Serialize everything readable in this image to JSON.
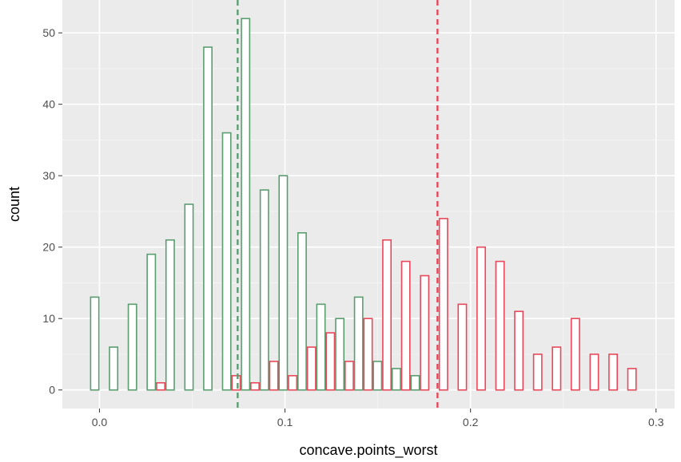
{
  "chart_data": {
    "type": "histogram",
    "xlabel": "concave.points_worst",
    "ylabel": "count",
    "xlim": [
      -0.02,
      0.31
    ],
    "ylim": [
      -2.6,
      54.6
    ],
    "x_ticks": [
      {
        "value": 0.0,
        "label": "0.0"
      },
      {
        "value": 0.1,
        "label": "0.1"
      },
      {
        "value": 0.2,
        "label": "0.2"
      },
      {
        "value": 0.3,
        "label": "0.3"
      }
    ],
    "y_ticks": [
      {
        "value": 0,
        "label": "0"
      },
      {
        "value": 10,
        "label": "10"
      },
      {
        "value": 20,
        "label": "20"
      },
      {
        "value": 30,
        "label": "30"
      },
      {
        "value": 40,
        "label": "40"
      },
      {
        "value": 50,
        "label": "50"
      }
    ],
    "bin_width": 0.01016,
    "bin_start": -0.00508,
    "grid": true,
    "background": "#ebebeb",
    "series": [
      {
        "color": "#5a9e70",
        "counts": [
          13,
          6,
          12,
          19,
          21,
          26,
          48,
          36,
          52,
          28,
          30,
          22,
          12,
          10,
          13,
          4,
          3,
          2,
          0,
          0,
          0,
          0,
          0,
          0,
          0,
          0,
          0,
          0,
          0
        ],
        "mean": 0.0745
      },
      {
        "color": "#e8485a",
        "counts": [
          0,
          0,
          0,
          1,
          0,
          0,
          0,
          2,
          1,
          4,
          2,
          6,
          8,
          4,
          10,
          21,
          18,
          16,
          24,
          12,
          20,
          18,
          11,
          5,
          6,
          10,
          5,
          5,
          3
        ],
        "mean": 0.1822
      }
    ]
  }
}
